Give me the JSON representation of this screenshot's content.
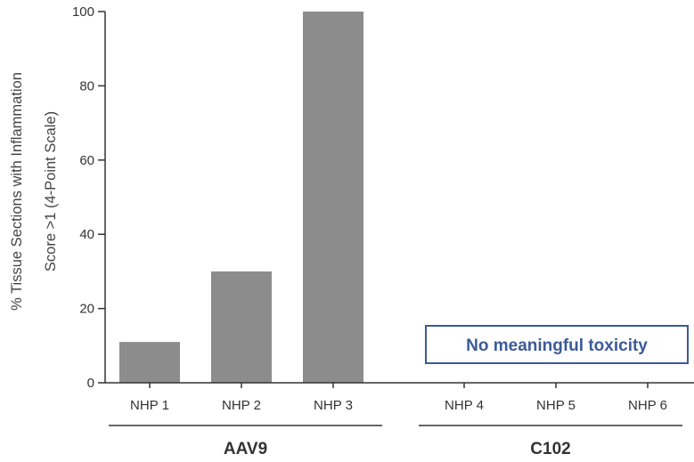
{
  "chart_data": {
    "type": "bar",
    "categories": [
      "NHP 1",
      "NHP 2",
      "NHP 3",
      "NHP 4",
      "NHP 5",
      "NHP 6"
    ],
    "values": [
      11,
      30,
      100,
      0,
      0,
      0
    ],
    "groups": [
      {
        "label": "AAV9",
        "categories": [
          "NHP 1",
          "NHP 2",
          "NHP 3"
        ]
      },
      {
        "label": "C102",
        "categories": [
          "NHP 4",
          "NHP 5",
          "NHP 6"
        ]
      }
    ],
    "ylabel_line1": "% Tissue Sections with Inflammation",
    "ylabel_line2": "Score >1 (4-Point Scale)",
    "ylim": [
      0,
      100
    ],
    "yticks": [
      0,
      20,
      40,
      60,
      80,
      100
    ],
    "annotation": "No meaningful toxicity",
    "bar_color": "#8c8c8c",
    "annotation_color": "#3b5a99",
    "axis_color": "#333333",
    "grid": false
  }
}
